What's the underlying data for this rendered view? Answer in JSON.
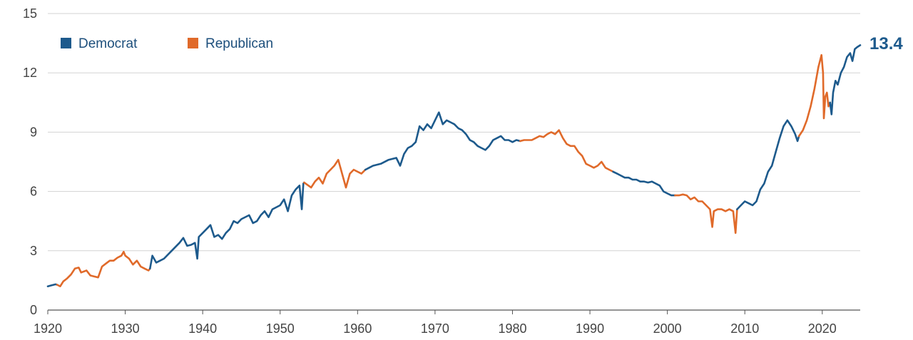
{
  "chart_data": {
    "type": "line",
    "title": "",
    "xlabel": "",
    "ylabel": "",
    "xlim": [
      1920,
      2024.9
    ],
    "ylim": [
      0,
      15
    ],
    "x_ticks": [
      1920,
      1930,
      1940,
      1950,
      1960,
      1970,
      1980,
      1990,
      2000,
      2010,
      2020
    ],
    "y_ticks": [
      0,
      3,
      6,
      9,
      12,
      15
    ],
    "grid": "horizontal",
    "legend_position": "top-left",
    "legend": [
      {
        "label": "Democrat",
        "color": "#1d5a8c"
      },
      {
        "label": "Republican",
        "color": "#e06a2a"
      }
    ],
    "end_value_label": "13.4",
    "end_value_color": "#1d5a8c",
    "series": [
      {
        "party": "Democrat",
        "color": "#1d5a8c",
        "points": [
          [
            1920.0,
            1.2
          ],
          [
            1920.5,
            1.25
          ],
          [
            1921.0,
            1.3
          ],
          [
            1921.2,
            1.28
          ]
        ]
      },
      {
        "party": "Republican",
        "color": "#e06a2a",
        "points": [
          [
            1921.2,
            1.28
          ],
          [
            1921.6,
            1.2
          ],
          [
            1922.0,
            1.45
          ],
          [
            1922.5,
            1.6
          ],
          [
            1923.0,
            1.8
          ],
          [
            1923.5,
            2.1
          ],
          [
            1924.0,
            2.15
          ],
          [
            1924.3,
            1.9
          ],
          [
            1925.0,
            2.0
          ],
          [
            1925.5,
            1.75
          ],
          [
            1926.0,
            1.7
          ],
          [
            1926.5,
            1.65
          ],
          [
            1927.0,
            2.2
          ],
          [
            1927.5,
            2.35
          ],
          [
            1928.0,
            2.5
          ],
          [
            1928.5,
            2.5
          ],
          [
            1929.0,
            2.65
          ],
          [
            1929.5,
            2.75
          ],
          [
            1929.8,
            2.95
          ],
          [
            1930.0,
            2.75
          ],
          [
            1930.5,
            2.6
          ],
          [
            1931.0,
            2.3
          ],
          [
            1931.5,
            2.5
          ],
          [
            1932.0,
            2.2
          ],
          [
            1932.5,
            2.1
          ],
          [
            1933.0,
            2.0
          ],
          [
            1933.2,
            2.1
          ]
        ]
      },
      {
        "party": "Democrat",
        "color": "#1d5a8c",
        "points": [
          [
            1933.2,
            2.1
          ],
          [
            1933.5,
            2.75
          ],
          [
            1934.0,
            2.4
          ],
          [
            1934.5,
            2.5
          ],
          [
            1935.0,
            2.6
          ],
          [
            1936.0,
            3.0
          ],
          [
            1937.0,
            3.4
          ],
          [
            1937.5,
            3.65
          ],
          [
            1938.0,
            3.25
          ],
          [
            1938.5,
            3.3
          ],
          [
            1939.0,
            3.4
          ],
          [
            1939.3,
            2.6
          ],
          [
            1939.5,
            3.7
          ],
          [
            1940.0,
            3.9
          ],
          [
            1940.5,
            4.1
          ],
          [
            1941.0,
            4.3
          ],
          [
            1941.5,
            3.7
          ],
          [
            1942.0,
            3.8
          ],
          [
            1942.5,
            3.6
          ],
          [
            1943.0,
            3.9
          ],
          [
            1943.5,
            4.1
          ],
          [
            1944.0,
            4.5
          ],
          [
            1944.5,
            4.4
          ],
          [
            1945.0,
            4.6
          ],
          [
            1946.0,
            4.8
          ],
          [
            1946.5,
            4.4
          ],
          [
            1947.0,
            4.5
          ],
          [
            1947.5,
            4.8
          ],
          [
            1948.0,
            5.0
          ],
          [
            1948.5,
            4.7
          ],
          [
            1949.0,
            5.1
          ],
          [
            1950.0,
            5.3
          ],
          [
            1950.5,
            5.6
          ],
          [
            1951.0,
            5.0
          ],
          [
            1951.5,
            5.8
          ],
          [
            1952.0,
            6.1
          ],
          [
            1952.5,
            6.3
          ],
          [
            1952.8,
            5.1
          ],
          [
            1953.0,
            6.4
          ],
          [
            1953.1,
            6.45
          ]
        ]
      },
      {
        "party": "Republican",
        "color": "#e06a2a",
        "points": [
          [
            1953.1,
            6.45
          ],
          [
            1954.0,
            6.2
          ],
          [
            1954.5,
            6.5
          ],
          [
            1955.0,
            6.7
          ],
          [
            1955.5,
            6.4
          ],
          [
            1956.0,
            6.9
          ],
          [
            1956.5,
            7.1
          ],
          [
            1957.0,
            7.3
          ],
          [
            1957.5,
            7.6
          ],
          [
            1958.0,
            6.9
          ],
          [
            1958.5,
            6.2
          ],
          [
            1959.0,
            6.9
          ],
          [
            1959.5,
            7.1
          ],
          [
            1960.0,
            7.0
          ],
          [
            1960.5,
            6.9
          ],
          [
            1961.0,
            7.1
          ]
        ]
      },
      {
        "party": "Democrat",
        "color": "#1d5a8c",
        "points": [
          [
            1961.0,
            7.1
          ],
          [
            1961.5,
            7.2
          ],
          [
            1962.0,
            7.3
          ],
          [
            1963.0,
            7.4
          ],
          [
            1964.0,
            7.6
          ],
          [
            1965.0,
            7.7
          ],
          [
            1965.5,
            7.3
          ],
          [
            1966.0,
            7.9
          ],
          [
            1966.5,
            8.2
          ],
          [
            1967.0,
            8.3
          ],
          [
            1967.5,
            8.5
          ],
          [
            1968.0,
            9.3
          ],
          [
            1968.5,
            9.1
          ],
          [
            1969.0,
            9.4
          ],
          [
            1969.5,
            9.2
          ],
          [
            1970.0,
            9.6
          ],
          [
            1970.5,
            10.0
          ],
          [
            1971.0,
            9.4
          ],
          [
            1971.5,
            9.6
          ],
          [
            1972.0,
            9.5
          ],
          [
            1972.5,
            9.4
          ],
          [
            1973.0,
            9.2
          ],
          [
            1973.5,
            9.1
          ],
          [
            1974.0,
            8.9
          ],
          [
            1974.5,
            8.6
          ],
          [
            1975.0,
            8.5
          ],
          [
            1975.5,
            8.3
          ],
          [
            1976.0,
            8.2
          ],
          [
            1976.5,
            8.1
          ],
          [
            1977.0,
            8.3
          ],
          [
            1977.5,
            8.6
          ],
          [
            1978.0,
            8.7
          ],
          [
            1978.5,
            8.8
          ],
          [
            1979.0,
            8.6
          ],
          [
            1979.5,
            8.6
          ],
          [
            1980.0,
            8.5
          ],
          [
            1980.5,
            8.6
          ],
          [
            1981.0,
            8.55
          ]
        ]
      },
      {
        "party": "Republican",
        "color": "#e06a2a",
        "points": [
          [
            1981.0,
            8.55
          ],
          [
            1981.5,
            8.6
          ],
          [
            1982.0,
            8.6
          ],
          [
            1982.5,
            8.6
          ],
          [
            1983.0,
            8.7
          ],
          [
            1983.5,
            8.8
          ],
          [
            1984.0,
            8.75
          ],
          [
            1984.5,
            8.9
          ],
          [
            1985.0,
            9.0
          ],
          [
            1985.5,
            8.9
          ],
          [
            1986.0,
            9.1
          ],
          [
            1986.5,
            8.7
          ],
          [
            1987.0,
            8.4
          ],
          [
            1987.5,
            8.3
          ],
          [
            1988.0,
            8.3
          ],
          [
            1988.5,
            8.0
          ],
          [
            1989.0,
            7.8
          ],
          [
            1989.5,
            7.4
          ],
          [
            1990.0,
            7.3
          ],
          [
            1990.5,
            7.2
          ],
          [
            1991.0,
            7.3
          ],
          [
            1991.5,
            7.5
          ],
          [
            1992.0,
            7.2
          ],
          [
            1992.5,
            7.1
          ],
          [
            1993.0,
            7.0
          ]
        ]
      },
      {
        "party": "Democrat",
        "color": "#1d5a8c",
        "points": [
          [
            1993.0,
            7.0
          ],
          [
            1993.5,
            6.9
          ],
          [
            1994.0,
            6.8
          ],
          [
            1994.5,
            6.7
          ],
          [
            1995.0,
            6.7
          ],
          [
            1995.5,
            6.6
          ],
          [
            1996.0,
            6.6
          ],
          [
            1996.5,
            6.5
          ],
          [
            1997.0,
            6.5
          ],
          [
            1997.5,
            6.45
          ],
          [
            1998.0,
            6.5
          ],
          [
            1998.5,
            6.4
          ],
          [
            1999.0,
            6.3
          ],
          [
            1999.5,
            6.0
          ],
          [
            2000.0,
            5.9
          ],
          [
            2000.5,
            5.8
          ],
          [
            2001.0,
            5.8
          ]
        ]
      },
      {
        "party": "Republican",
        "color": "#e06a2a",
        "points": [
          [
            2001.0,
            5.8
          ],
          [
            2001.5,
            5.8
          ],
          [
            2002.0,
            5.85
          ],
          [
            2002.5,
            5.8
          ],
          [
            2003.0,
            5.6
          ],
          [
            2003.5,
            5.7
          ],
          [
            2004.0,
            5.5
          ],
          [
            2004.5,
            5.5
          ],
          [
            2005.0,
            5.3
          ],
          [
            2005.5,
            5.1
          ],
          [
            2005.8,
            4.2
          ],
          [
            2006.0,
            5.0
          ],
          [
            2006.5,
            5.1
          ],
          [
            2007.0,
            5.1
          ],
          [
            2007.5,
            5.0
          ],
          [
            2008.0,
            5.1
          ],
          [
            2008.5,
            5.0
          ],
          [
            2008.8,
            3.9
          ],
          [
            2009.0,
            5.1
          ]
        ]
      },
      {
        "party": "Democrat",
        "color": "#1d5a8c",
        "points": [
          [
            2009.0,
            5.1
          ],
          [
            2009.5,
            5.3
          ],
          [
            2010.0,
            5.5
          ],
          [
            2010.5,
            5.4
          ],
          [
            2011.0,
            5.3
          ],
          [
            2011.5,
            5.5
          ],
          [
            2012.0,
            6.1
          ],
          [
            2012.5,
            6.4
          ],
          [
            2013.0,
            7.0
          ],
          [
            2013.5,
            7.3
          ],
          [
            2014.0,
            8.0
          ],
          [
            2014.5,
            8.7
          ],
          [
            2015.0,
            9.3
          ],
          [
            2015.5,
            9.6
          ],
          [
            2016.0,
            9.3
          ],
          [
            2016.5,
            8.9
          ],
          [
            2016.8,
            8.55
          ],
          [
            2017.0,
            8.8
          ]
        ]
      },
      {
        "party": "Republican",
        "color": "#e06a2a",
        "points": [
          [
            2017.0,
            8.8
          ],
          [
            2017.5,
            9.1
          ],
          [
            2018.0,
            9.6
          ],
          [
            2018.5,
            10.3
          ],
          [
            2019.0,
            11.2
          ],
          [
            2019.5,
            12.3
          ],
          [
            2019.9,
            12.9
          ],
          [
            2020.1,
            12.0
          ],
          [
            2020.2,
            9.7
          ],
          [
            2020.4,
            10.8
          ],
          [
            2020.6,
            11.0
          ],
          [
            2020.8,
            10.3
          ],
          [
            2021.0,
            10.5
          ]
        ]
      },
      {
        "party": "Democrat",
        "color": "#1d5a8c",
        "points": [
          [
            2021.0,
            10.5
          ],
          [
            2021.2,
            9.9
          ],
          [
            2021.4,
            11.0
          ],
          [
            2021.7,
            11.6
          ],
          [
            2022.0,
            11.4
          ],
          [
            2022.4,
            12.0
          ],
          [
            2022.8,
            12.3
          ],
          [
            2023.2,
            12.8
          ],
          [
            2023.6,
            13.0
          ],
          [
            2023.9,
            12.6
          ],
          [
            2024.2,
            13.2
          ],
          [
            2024.5,
            13.3
          ],
          [
            2024.9,
            13.4
          ]
        ]
      }
    ]
  }
}
